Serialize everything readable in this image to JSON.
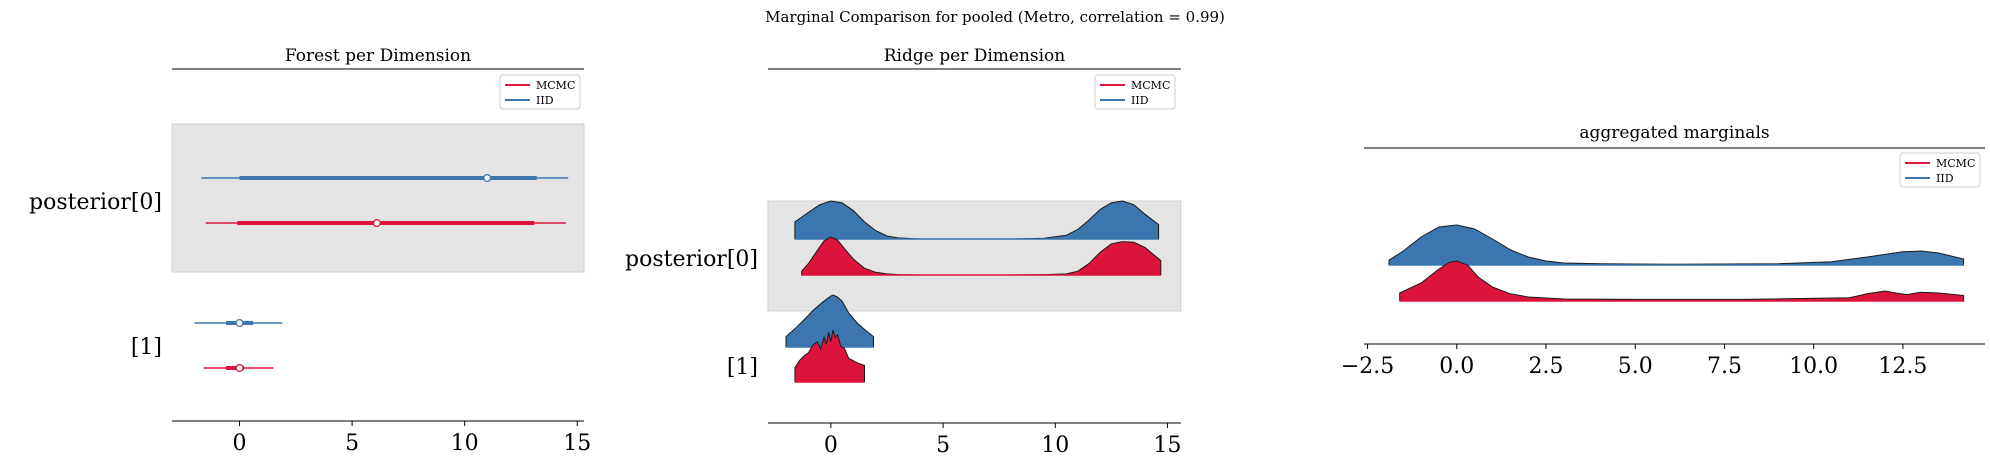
{
  "suptitle": "Marginal Comparison for pooled (Metro, correlation = 0.99)",
  "colors": {
    "MCMC": "#dc143c",
    "IID": "#3b76af",
    "band": "#e4e4e4",
    "axis": "#000000"
  },
  "chart_data": [
    {
      "type": "forest",
      "title": "Forest per Dimension",
      "legend": [
        "MCMC",
        "IID"
      ],
      "legend_position": "top-right",
      "xlim": [
        -3.0,
        15.3
      ],
      "xticks": [
        0,
        5,
        10,
        15
      ],
      "rows": [
        {
          "label": "posterior[0]",
          "shaded": true,
          "series": [
            {
              "name": "IID",
              "min": -1.7,
              "q1": 0.0,
              "median": 11.0,
              "q3": 13.2,
              "max": 14.6
            },
            {
              "name": "MCMC",
              "min": -1.5,
              "q1": -0.1,
              "median": 6.1,
              "q3": 13.1,
              "max": 14.5
            }
          ]
        },
        {
          "label": "[1]",
          "shaded": false,
          "series": [
            {
              "name": "IID",
              "min": -2.0,
              "q1": -0.6,
              "median": 0.0,
              "q3": 0.6,
              "max": 1.9
            },
            {
              "name": "MCMC",
              "min": -1.6,
              "q1": -0.6,
              "median": 0.0,
              "q3": 0.2,
              "max": 1.5
            }
          ]
        }
      ]
    },
    {
      "type": "ridge",
      "title": "Ridge per Dimension",
      "legend": [
        "MCMC",
        "IID"
      ],
      "legend_position": "top-right",
      "xlim": [
        -2.8,
        15.6
      ],
      "xticks": [
        0,
        5,
        10,
        15
      ],
      "rows": [
        {
          "label": "posterior[0]",
          "shaded": true,
          "series": [
            {
              "name": "IID",
              "range": [
                -1.6,
                14.6
              ],
              "x": [
                -1.6,
                -1.0,
                -0.5,
                0.0,
                0.5,
                1.0,
                1.5,
                2.0,
                2.5,
                3.0,
                4.0,
                6.0,
                8.0,
                9.5,
                10.5,
                11.0,
                11.5,
                12.0,
                12.5,
                13.0,
                13.5,
                14.0,
                14.6
              ],
              "y": [
                0.45,
                0.7,
                0.9,
                1.0,
                0.95,
                0.75,
                0.45,
                0.22,
                0.08,
                0.03,
                0.0,
                0.0,
                0.0,
                0.02,
                0.1,
                0.25,
                0.5,
                0.78,
                0.95,
                1.0,
                0.9,
                0.65,
                0.38
              ]
            },
            {
              "name": "MCMC",
              "range": [
                -1.3,
                14.7
              ],
              "x": [
                -1.3,
                -1.0,
                -0.6,
                -0.3,
                0.0,
                0.3,
                0.6,
                1.0,
                1.5,
                2.0,
                2.5,
                3.0,
                4.0,
                6.0,
                8.0,
                9.5,
                10.5,
                11.0,
                11.5,
                12.0,
                12.5,
                13.0,
                13.5,
                14.0,
                14.7
              ],
              "y": [
                0.1,
                0.3,
                0.65,
                0.9,
                1.0,
                0.92,
                0.7,
                0.42,
                0.18,
                0.07,
                0.03,
                0.01,
                0.0,
                0.0,
                0.0,
                0.01,
                0.03,
                0.1,
                0.3,
                0.6,
                0.82,
                0.88,
                0.86,
                0.72,
                0.38
              ]
            }
          ]
        },
        {
          "label": "[1]",
          "shaded": false,
          "series": [
            {
              "name": "IID",
              "range": [
                -2.0,
                1.9
              ],
              "x": [
                -2.0,
                -1.6,
                -1.2,
                -0.8,
                -0.4,
                -0.1,
                0.0,
                0.1,
                0.3,
                0.5,
                0.8,
                1.2,
                1.6,
                1.9
              ],
              "y": [
                0.2,
                0.35,
                0.52,
                0.7,
                0.85,
                0.95,
                0.98,
                1.0,
                0.96,
                0.88,
                0.65,
                0.45,
                0.3,
                0.2
              ]
            },
            {
              "name": "MCMC",
              "range": [
                -1.6,
                1.5
              ],
              "x": [
                -1.6,
                -1.4,
                -1.2,
                -1.0,
                -0.8,
                -0.6,
                -0.45,
                -0.3,
                -0.2,
                -0.1,
                0.0,
                0.1,
                0.2,
                0.3,
                0.45,
                0.6,
                0.8,
                1.0,
                1.2,
                1.5
              ],
              "y": [
                0.3,
                0.45,
                0.55,
                0.62,
                0.78,
                0.85,
                0.7,
                0.95,
                0.8,
                1.05,
                0.85,
                1.1,
                0.95,
                1.0,
                0.75,
                0.72,
                0.5,
                0.45,
                0.4,
                0.35
              ]
            }
          ]
        }
      ]
    },
    {
      "type": "ridge",
      "title": "aggregated marginals",
      "legend": [
        "MCMC",
        "IID"
      ],
      "legend_position": "top-right",
      "xlim": [
        -2.6,
        14.8
      ],
      "xticks": [
        -2.5,
        0.0,
        2.5,
        5.0,
        7.5,
        10.0,
        12.5
      ],
      "xtick_labels": [
        "−2.5",
        "0.0",
        "2.5",
        "5.0",
        "7.5",
        "10.0",
        "12.5"
      ],
      "rows": [
        {
          "label": "",
          "shaded": false,
          "series": [
            {
              "name": "IID",
              "range": [
                -1.9,
                14.2
              ],
              "x": [
                -1.9,
                -1.5,
                -1.0,
                -0.5,
                0.0,
                0.5,
                1.0,
                1.5,
                2.0,
                2.5,
                3.0,
                4.0,
                6.0,
                9.0,
                10.5,
                11.5,
                12.5,
                13.0,
                13.5,
                14.2
              ],
              "y": [
                0.12,
                0.35,
                0.7,
                0.95,
                1.0,
                0.9,
                0.65,
                0.38,
                0.2,
                0.1,
                0.05,
                0.03,
                0.02,
                0.03,
                0.08,
                0.2,
                0.33,
                0.35,
                0.3,
                0.15
              ]
            },
            {
              "name": "MCMC",
              "range": [
                -1.6,
                14.2
              ],
              "x": [
                -1.6,
                -1.0,
                -0.5,
                -0.2,
                0.0,
                0.3,
                0.6,
                1.0,
                1.5,
                2.0,
                3.0,
                5.0,
                8.0,
                11.0,
                11.5,
                12.0,
                12.3,
                12.6,
                13.0,
                13.5,
                14.2
              ],
              "y": [
                0.2,
                0.45,
                0.8,
                0.97,
                1.0,
                0.9,
                0.6,
                0.35,
                0.18,
                0.1,
                0.05,
                0.04,
                0.04,
                0.08,
                0.18,
                0.25,
                0.2,
                0.16,
                0.22,
                0.2,
                0.14
              ]
            }
          ]
        }
      ]
    }
  ]
}
